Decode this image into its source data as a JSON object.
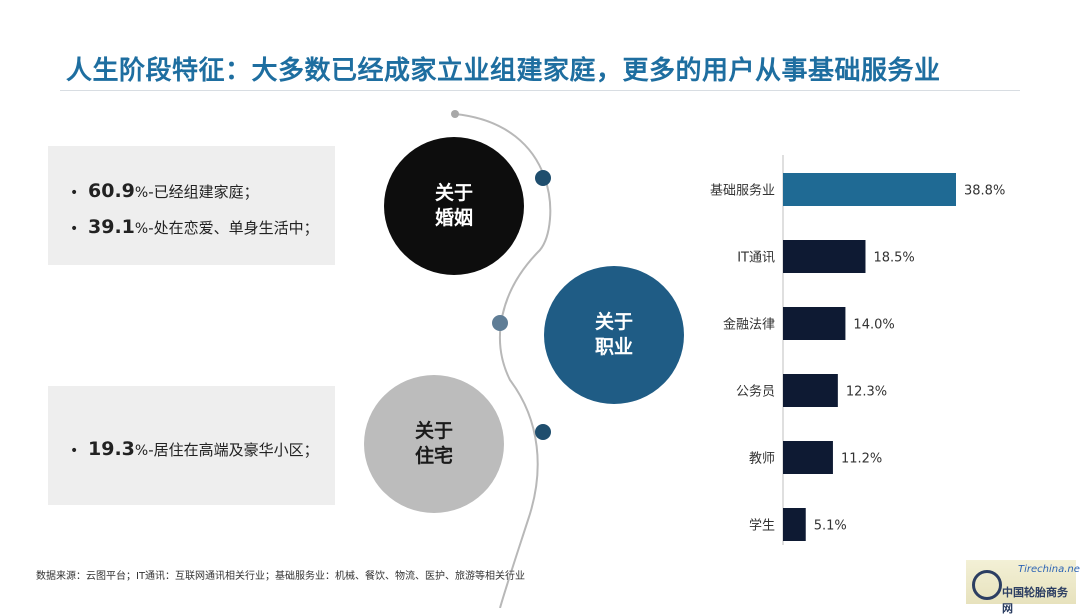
{
  "header": {
    "title": "人生阶段特征：大多数已经成家立业组建家庭，更多的用户从事基础服务业"
  },
  "marriage": {
    "circle_line1": "关于",
    "circle_line2": "婚姻",
    "items": [
      {
        "value": "60.9",
        "unit": "%",
        "text": "-已经组建家庭；"
      },
      {
        "value": "39.1",
        "unit": "%",
        "text": "-处在恋爱、单身生活中；"
      }
    ]
  },
  "career": {
    "circle_line1": "关于",
    "circle_line2": "职业"
  },
  "housing": {
    "circle_line1": "关于",
    "circle_line2": "住宅",
    "items": [
      {
        "value": "19.3",
        "unit": "%",
        "text": "-居住在高端及豪华小区；"
      }
    ]
  },
  "chart_data": {
    "type": "bar",
    "orientation": "horizontal",
    "categories": [
      "基础服务业",
      "IT通讯",
      "金融法律",
      "公务员",
      "教师",
      "学生"
    ],
    "values": [
      38.8,
      18.5,
      14.0,
      12.3,
      11.2,
      5.1
    ],
    "value_labels": [
      "38.8%",
      "18.5%",
      "14.0%",
      "12.3%",
      "11.2%",
      "5.1%"
    ],
    "highlight_index": 0,
    "colors": {
      "highlight": "#1f6a94",
      "default": "#0e1a33"
    },
    "xlim": [
      0,
      40
    ],
    "grid": false
  },
  "footer": {
    "source": "数据来源：云图平台；IT通讯：互联网通讯相关行业；基础服务业：机械、餐饮、物流、医护、旅游等相关行业"
  },
  "watermark": {
    "url": "Tirechina.net",
    "name": "中国轮胎商务网"
  },
  "colors": {
    "title": "#1e6ea0",
    "accent_dot": "#1f4e6e",
    "dot_grey": "#5f7d96",
    "curve": "#b8b8b8"
  }
}
